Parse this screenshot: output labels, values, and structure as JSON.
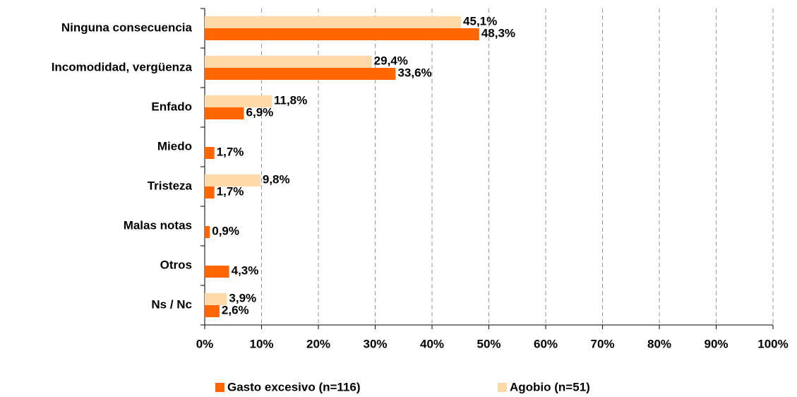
{
  "chart_data": {
    "type": "hbar",
    "categories": [
      "Ninguna consecuencia",
      "Incomodidad, vergüenza",
      "Enfado",
      "Miedo",
      "Tristeza",
      "Malas notas",
      "Otros",
      "Ns / Nc"
    ],
    "series": [
      {
        "name": "Gasto excesivo (n=116)",
        "color": "#ff6600",
        "values": [
          48.3,
          33.6,
          6.9,
          1.7,
          1.7,
          0.9,
          4.3,
          2.6
        ],
        "value_labels": [
          "48,3%",
          "33,6%",
          "6,9%",
          "1,7%",
          "1,7%",
          "0,9%",
          "4,3%",
          "2,6%"
        ]
      },
      {
        "name": "Agobio (n=51)",
        "color": "#fcd9a6",
        "values": [
          45.1,
          29.4,
          11.8,
          null,
          9.8,
          null,
          null,
          3.9
        ],
        "value_labels": [
          "45,1%",
          "29,4%",
          "11,8%",
          null,
          "9,8%",
          null,
          null,
          "3,9%"
        ]
      }
    ],
    "xlim": [
      0,
      100
    ],
    "xticks": [
      {
        "value": 0,
        "label": "0%"
      },
      {
        "value": 10,
        "label": "10%"
      },
      {
        "value": 20,
        "label": "20%"
      },
      {
        "value": 30,
        "label": "30%"
      },
      {
        "value": 40,
        "label": "40%"
      },
      {
        "value": 50,
        "label": "50%"
      },
      {
        "value": 60,
        "label": "60%"
      },
      {
        "value": 70,
        "label": "70%"
      },
      {
        "value": 80,
        "label": "80%"
      },
      {
        "value": 90,
        "label": "90%"
      },
      {
        "value": 100,
        "label": "100%"
      }
    ],
    "grid": true,
    "legend": "bottom"
  }
}
